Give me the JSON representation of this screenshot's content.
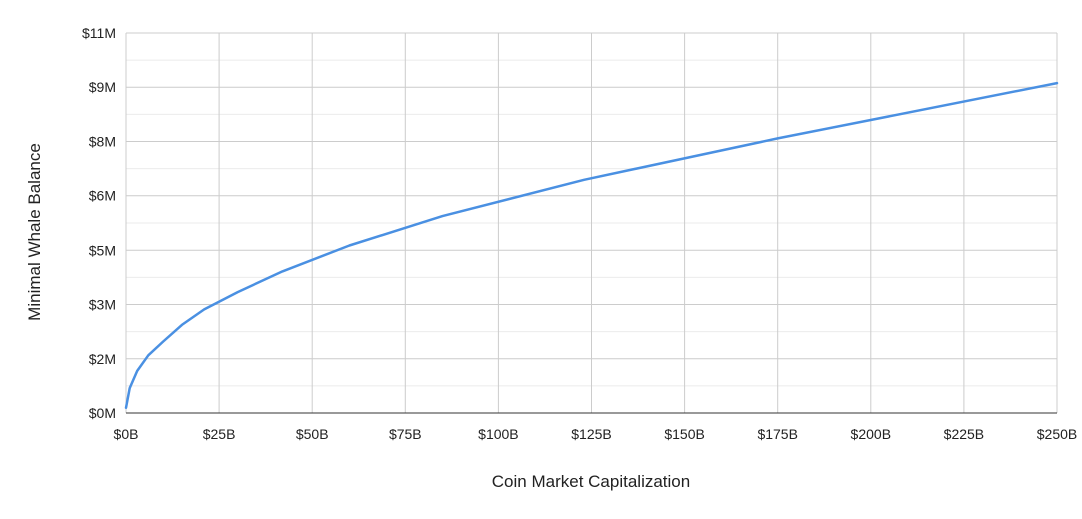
{
  "chart_data": {
    "type": "line",
    "title": "",
    "xlabel": "Coin Market Capitalization",
    "ylabel": "Minimal Whale Balance",
    "x_unit": "billion USD",
    "y_unit": "million USD",
    "xlim": [
      0,
      250
    ],
    "ylim": [
      0,
      11
    ],
    "x_ticks": [
      0,
      25,
      50,
      75,
      100,
      125,
      150,
      175,
      200,
      225,
      250
    ],
    "x_tick_labels": [
      "$0B",
      "$25B",
      "$50B",
      "$75B",
      "$100B",
      "$125B",
      "$150B",
      "$175B",
      "$200B",
      "$225B",
      "$250B"
    ],
    "y_ticks": [
      0,
      1.57,
      3.14,
      4.71,
      6.29,
      7.86,
      9.43,
      11
    ],
    "y_tick_labels": [
      "$0M",
      "$2M",
      "$3M",
      "$5M",
      "$6M",
      "$8M",
      "$9M",
      "$11M"
    ],
    "grid": true,
    "legend": "none",
    "series": [
      {
        "color": "#4a90e2",
        "x": [
          0,
          1,
          3,
          6,
          10,
          15,
          21,
          30,
          42,
          60,
          85,
          123,
          175,
          250
        ],
        "y": [
          0.15,
          0.72,
          1.22,
          1.67,
          2.07,
          2.55,
          3.0,
          3.5,
          4.1,
          4.85,
          5.7,
          6.75,
          7.95,
          9.55
        ]
      }
    ]
  }
}
